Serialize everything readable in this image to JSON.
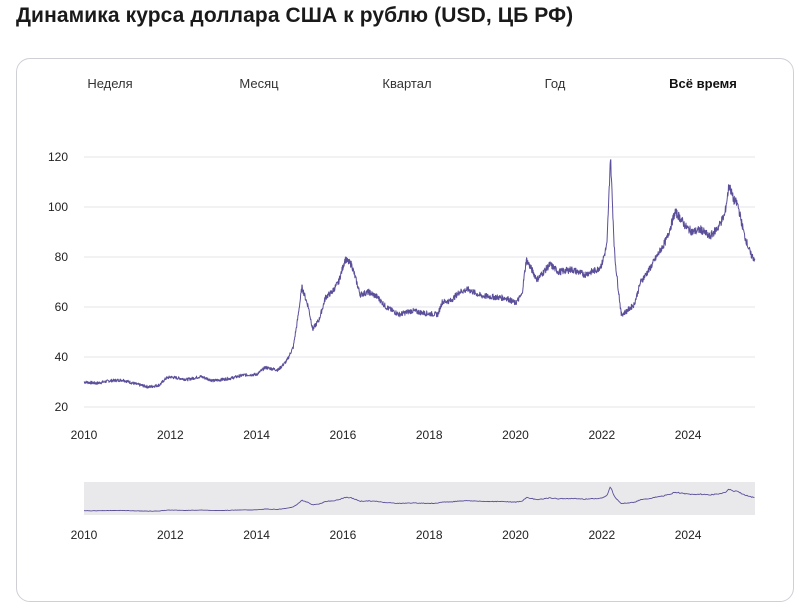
{
  "page": {
    "title": "Динамика курса доллара США к рублю (USD, ЦБ РФ)"
  },
  "tabs": [
    {
      "label": "Неделя",
      "active": false
    },
    {
      "label": "Месяц",
      "active": false
    },
    {
      "label": "Квартал",
      "active": false
    },
    {
      "label": "Год",
      "active": false
    },
    {
      "label": "Всё время",
      "active": true
    }
  ],
  "colors": {
    "line": "#5b4f9a",
    "grid": "#e6e6ea",
    "navigator_bg": "#e9e9ec",
    "card_border": "#cfcfd6"
  },
  "chart_data": {
    "type": "line",
    "title": "Динамика курса доллара США к рублю (USD, ЦБ РФ)",
    "xlabel": "",
    "ylabel": "",
    "xlim": [
      2010.0,
      2025.55
    ],
    "ylim": [
      20,
      120
    ],
    "yticks": [
      20,
      40,
      60,
      80,
      100,
      120
    ],
    "xticks": [
      2010,
      2012,
      2014,
      2016,
      2018,
      2020,
      2022,
      2024
    ],
    "grid": true,
    "legend": "none",
    "series": [
      {
        "values_note_free": true,
        "x": [
          2010.0,
          2010.3,
          2010.6,
          2010.9,
          2011.2,
          2011.5,
          2011.75,
          2011.9,
          2012.0,
          2012.4,
          2012.7,
          2013.0,
          2013.4,
          2013.7,
          2014.0,
          2014.2,
          2014.5,
          2014.7,
          2014.85,
          2014.95,
          2015.05,
          2015.2,
          2015.3,
          2015.45,
          2015.6,
          2015.75,
          2015.9,
          2016.05,
          2016.2,
          2016.4,
          2016.6,
          2016.8,
          2017.0,
          2017.3,
          2017.6,
          2017.9,
          2018.2,
          2018.3,
          2018.5,
          2018.7,
          2018.9,
          2019.2,
          2019.5,
          2019.8,
          2020.0,
          2020.15,
          2020.25,
          2020.5,
          2020.8,
          2021.0,
          2021.3,
          2021.6,
          2021.9,
          2022.0,
          2022.12,
          2022.2,
          2022.3,
          2022.45,
          2022.55,
          2022.75,
          2022.9,
          2023.1,
          2023.3,
          2023.5,
          2023.7,
          2023.8,
          2023.95,
          2024.1,
          2024.3,
          2024.5,
          2024.7,
          2024.85,
          2024.95,
          2025.05,
          2025.15,
          2025.3,
          2025.45,
          2025.55
        ],
        "y": [
          30.0,
          29.5,
          30.5,
          30.8,
          29.2,
          28.0,
          28.8,
          31.5,
          32.0,
          31.0,
          32.2,
          30.5,
          31.5,
          32.8,
          33.0,
          35.8,
          34.8,
          38.5,
          44.0,
          55.0,
          68.0,
          60.0,
          51.0,
          55.0,
          64.0,
          66.0,
          70.0,
          79.0,
          77.0,
          65.0,
          66.0,
          64.0,
          60.0,
          57.0,
          58.5,
          57.5,
          57.0,
          62.0,
          62.5,
          66.0,
          67.0,
          64.5,
          64.0,
          63.5,
          61.5,
          65.0,
          79.0,
          71.0,
          77.0,
          74.0,
          75.0,
          73.0,
          75.0,
          77.0,
          85.0,
          120.0,
          80.0,
          57.0,
          58.0,
          61.0,
          70.0,
          75.0,
          81.0,
          87.0,
          98.0,
          96.0,
          92.0,
          90.0,
          91.0,
          88.0,
          92.0,
          97.0,
          109.0,
          103.0,
          101.0,
          89.0,
          81.0,
          79.0
        ]
      }
    ]
  },
  "navigator": {
    "xticks": [
      2010,
      2012,
      2014,
      2016,
      2018,
      2020,
      2022,
      2024
    ]
  }
}
